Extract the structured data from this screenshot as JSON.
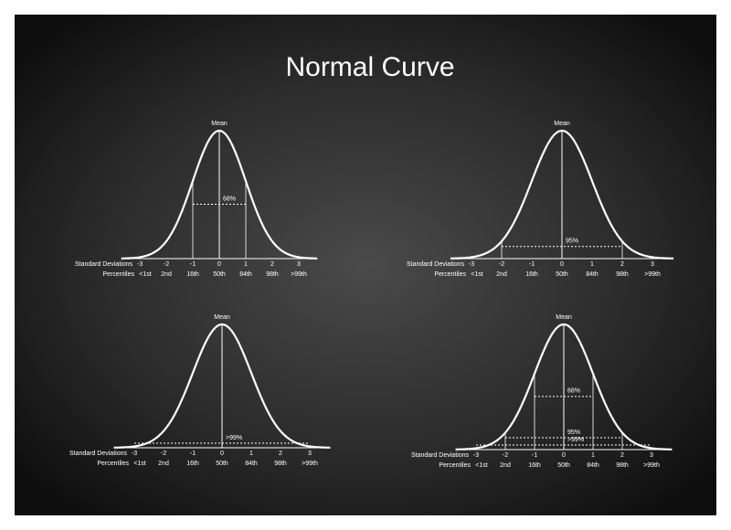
{
  "title": "Normal Curve",
  "mean_label": "Mean",
  "sd_label": "Standard Deviations",
  "percentile_label": "Percentiles",
  "sd_ticks": [
    "-3",
    "-2",
    "-1",
    "0",
    "1",
    "2",
    "3"
  ],
  "percentiles": [
    "<1st",
    "2nd",
    "16th",
    "50th",
    "84th",
    "98th",
    ">99th"
  ],
  "panels": [
    {
      "bands": [
        {
          "sd": 1,
          "label": "68%"
        }
      ]
    },
    {
      "bands": [
        {
          "sd": 2,
          "label": "95%"
        }
      ]
    },
    {
      "bands": [
        {
          "sd": 3,
          "label": ">99%"
        }
      ]
    },
    {
      "bands": [
        {
          "sd": 1,
          "label": "68%"
        },
        {
          "sd": 2,
          "label": "95%"
        },
        {
          "sd": 3,
          "label": ">99%"
        }
      ]
    }
  ]
}
